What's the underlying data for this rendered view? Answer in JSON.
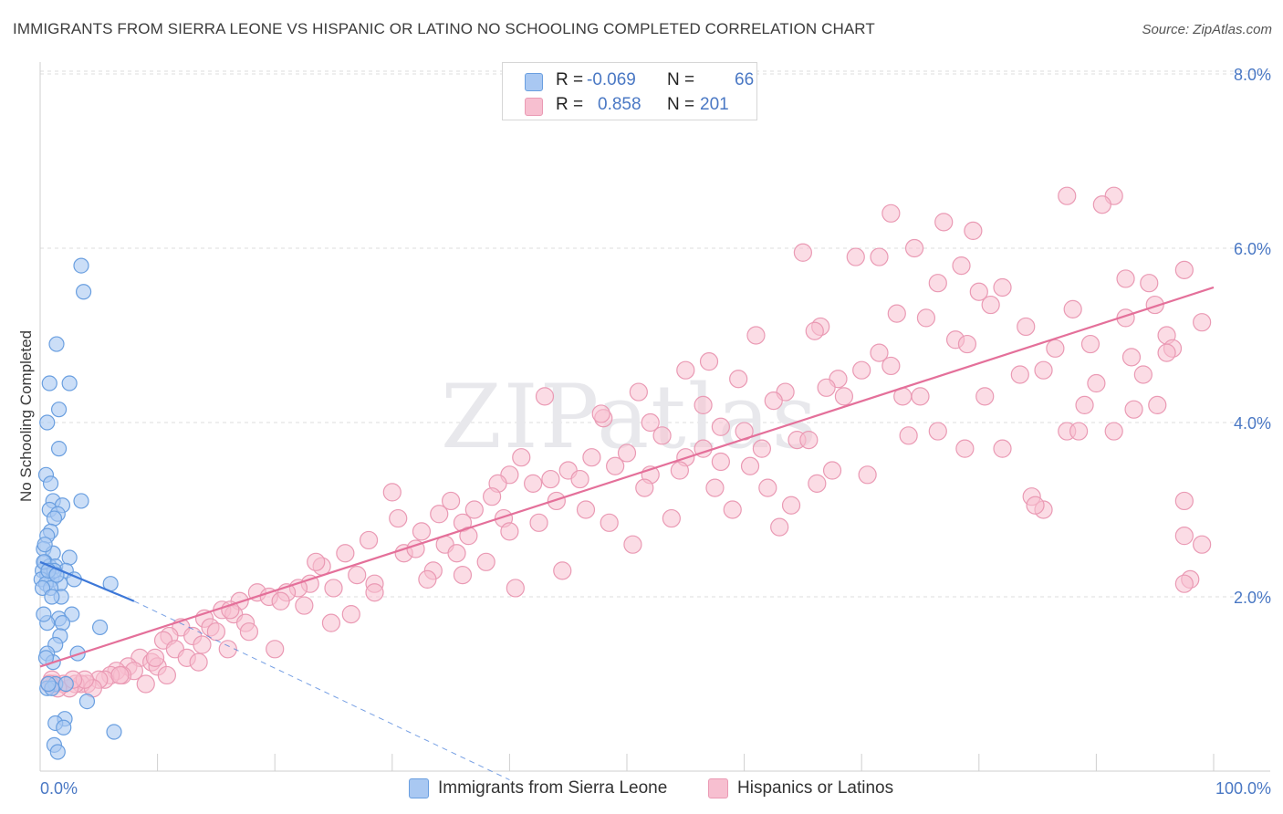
{
  "title": "IMMIGRANTS FROM SIERRA LEONE VS HISPANIC OR LATINO NO SCHOOLING COMPLETED CORRELATION CHART",
  "source": "Source: ZipAtlas.com",
  "watermark": "ZIPatlas",
  "colors": {
    "blue_fill": "#a9c8f2",
    "blue_stroke": "#6a9fe0",
    "blue_line": "#3d78d8",
    "pink_fill": "#f7bfd0",
    "pink_stroke": "#ea9ab4",
    "pink_line": "#e4709a",
    "tick_text": "#4a78c4"
  },
  "legend_top": {
    "rows": [
      {
        "r_label": "R =",
        "r_value": "-0.069",
        "n_label": "N =",
        "n_value": "66"
      },
      {
        "r_label": "R =",
        "r_value": "0.858",
        "n_label": "N =",
        "n_value": "201"
      }
    ]
  },
  "legend_bottom": {
    "series_a": "Immigrants from Sierra Leone",
    "series_b": "Hispanics or Latinos"
  },
  "chart_data": {
    "type": "scatter",
    "title": "IMMIGRANTS FROM SIERRA LEONE VS HISPANIC OR LATINO NO SCHOOLING COMPLETED CORRELATION CHART",
    "xlabel": "",
    "ylabel": "No Schooling Completed",
    "xlim": [
      0,
      100
    ],
    "ylim": [
      0,
      8
    ],
    "x_tick_labels": [
      "0.0%",
      "100.0%"
    ],
    "y_tick_values": [
      2,
      4,
      6,
      8
    ],
    "y_tick_labels": [
      "2.0%",
      "4.0%",
      "6.0%",
      "8.0%"
    ],
    "grid": true,
    "series": [
      {
        "name": "Immigrants from Sierra Leone",
        "color": "blue",
        "r": -0.069,
        "n": 66,
        "trend": {
          "x0": 0.0,
          "y0": 2.4,
          "x1": 8.0,
          "y1": 1.95,
          "dashed_to_x": 40,
          "dashed_to_y": -0.1
        },
        "points": [
          [
            3.5,
            5.8
          ],
          [
            3.7,
            5.5
          ],
          [
            1.4,
            4.9
          ],
          [
            0.8,
            4.45
          ],
          [
            2.5,
            4.45
          ],
          [
            1.6,
            4.15
          ],
          [
            0.6,
            4.0
          ],
          [
            1.6,
            3.7
          ],
          [
            0.5,
            3.4
          ],
          [
            0.9,
            3.3
          ],
          [
            3.5,
            3.1
          ],
          [
            1.1,
            3.1
          ],
          [
            1.9,
            3.05
          ],
          [
            0.8,
            3.0
          ],
          [
            1.5,
            2.95
          ],
          [
            1.2,
            2.9
          ],
          [
            0.9,
            2.75
          ],
          [
            0.6,
            2.7
          ],
          [
            0.3,
            2.55
          ],
          [
            1.1,
            2.5
          ],
          [
            2.5,
            2.45
          ],
          [
            0.4,
            2.4
          ],
          [
            0.8,
            2.35
          ],
          [
            1.3,
            2.35
          ],
          [
            0.2,
            2.3
          ],
          [
            2.2,
            2.3
          ],
          [
            0.6,
            2.25
          ],
          [
            1.0,
            2.2
          ],
          [
            0.1,
            2.2
          ],
          [
            1.7,
            2.15
          ],
          [
            0.5,
            2.15
          ],
          [
            1.2,
            2.3
          ],
          [
            0.3,
            2.4
          ],
          [
            0.9,
            2.1
          ],
          [
            6.0,
            2.15
          ],
          [
            0.2,
            2.1
          ],
          [
            0.7,
            2.3
          ],
          [
            1.4,
            2.25
          ],
          [
            2.7,
            1.8
          ],
          [
            1.6,
            1.75
          ],
          [
            0.6,
            1.7
          ],
          [
            1.9,
            1.7
          ],
          [
            5.1,
            1.65
          ],
          [
            1.7,
            1.55
          ],
          [
            1.3,
            1.45
          ],
          [
            0.6,
            1.35
          ],
          [
            3.2,
            1.35
          ],
          [
            1.1,
            1.25
          ],
          [
            1.3,
            1.0
          ],
          [
            2.2,
            1.0
          ],
          [
            0.6,
            0.95
          ],
          [
            1.0,
            0.95
          ],
          [
            4.0,
            0.8
          ],
          [
            2.1,
            0.6
          ],
          [
            1.3,
            0.55
          ],
          [
            2.0,
            0.5
          ],
          [
            6.3,
            0.45
          ],
          [
            1.2,
            0.3
          ],
          [
            1.5,
            0.22
          ],
          [
            0.5,
            1.3
          ],
          [
            1.8,
            2.0
          ],
          [
            0.4,
            2.6
          ],
          [
            2.9,
            2.2
          ],
          [
            0.7,
            1.0
          ],
          [
            1.0,
            2.0
          ],
          [
            0.3,
            1.8
          ]
        ]
      },
      {
        "name": "Hispanics or Latinos",
        "color": "pink",
        "r": 0.858,
        "n": 201,
        "trend": {
          "x0": 0.0,
          "y0": 1.2,
          "x1": 100.0,
          "y1": 5.55
        },
        "points": [
          [
            87.5,
            6.6
          ],
          [
            91.5,
            6.6
          ],
          [
            90.5,
            6.5
          ],
          [
            72.5,
            6.4
          ],
          [
            77,
            6.3
          ],
          [
            79.5,
            6.2
          ],
          [
            74.5,
            6.0
          ],
          [
            65,
            5.95
          ],
          [
            69.5,
            5.9
          ],
          [
            71.5,
            5.9
          ],
          [
            78.5,
            5.8
          ],
          [
            97.5,
            5.75
          ],
          [
            92.5,
            5.65
          ],
          [
            94.5,
            5.6
          ],
          [
            76.5,
            5.6
          ],
          [
            82,
            5.55
          ],
          [
            80,
            5.5
          ],
          [
            81,
            5.35
          ],
          [
            95,
            5.35
          ],
          [
            88,
            5.3
          ],
          [
            73,
            5.25
          ],
          [
            75.5,
            5.2
          ],
          [
            92.5,
            5.2
          ],
          [
            99,
            5.15
          ],
          [
            84,
            5.1
          ],
          [
            66.5,
            5.1
          ],
          [
            61,
            5.0
          ],
          [
            66,
            5.05
          ],
          [
            96,
            5.0
          ],
          [
            78,
            4.95
          ],
          [
            79,
            4.9
          ],
          [
            89.5,
            4.9
          ],
          [
            96.5,
            4.85
          ],
          [
            86.5,
            4.85
          ],
          [
            96,
            4.8
          ],
          [
            71.5,
            4.8
          ],
          [
            93,
            4.75
          ],
          [
            57,
            4.7
          ],
          [
            55,
            4.6
          ],
          [
            72.5,
            4.65
          ],
          [
            85.5,
            4.6
          ],
          [
            70,
            4.6
          ],
          [
            83.5,
            4.55
          ],
          [
            68,
            4.5
          ],
          [
            59.5,
            4.5
          ],
          [
            67,
            4.4
          ],
          [
            94,
            4.55
          ],
          [
            90,
            4.45
          ],
          [
            63.5,
            4.35
          ],
          [
            51,
            4.35
          ],
          [
            43,
            4.3
          ],
          [
            73.5,
            4.3
          ],
          [
            75,
            4.3
          ],
          [
            62.5,
            4.25
          ],
          [
            56.5,
            4.2
          ],
          [
            80.5,
            4.3
          ],
          [
            89,
            4.2
          ],
          [
            68.5,
            4.3
          ],
          [
            48,
            4.05
          ],
          [
            52,
            4.0
          ],
          [
            58,
            3.95
          ],
          [
            60,
            3.9
          ],
          [
            76.5,
            3.9
          ],
          [
            87.5,
            3.9
          ],
          [
            91.5,
            3.9
          ],
          [
            64.5,
            3.8
          ],
          [
            53,
            3.85
          ],
          [
            56.5,
            3.7
          ],
          [
            61.5,
            3.7
          ],
          [
            65.5,
            3.8
          ],
          [
            82,
            3.7
          ],
          [
            50,
            3.65
          ],
          [
            55,
            3.6
          ],
          [
            47,
            3.6
          ],
          [
            41,
            3.6
          ],
          [
            58,
            3.55
          ],
          [
            49,
            3.5
          ],
          [
            45,
            3.45
          ],
          [
            54.5,
            3.45
          ],
          [
            52,
            3.4
          ],
          [
            40,
            3.4
          ],
          [
            43.5,
            3.35
          ],
          [
            46,
            3.35
          ],
          [
            39,
            3.3
          ],
          [
            42,
            3.3
          ],
          [
            67.5,
            3.45
          ],
          [
            30,
            3.2
          ],
          [
            51.5,
            3.25
          ],
          [
            57.5,
            3.25
          ],
          [
            62,
            3.25
          ],
          [
            38.5,
            3.15
          ],
          [
            84.5,
            3.15
          ],
          [
            35,
            3.1
          ],
          [
            44,
            3.1
          ],
          [
            97.5,
            3.1
          ],
          [
            37,
            3.0
          ],
          [
            46.5,
            3.0
          ],
          [
            64,
            3.05
          ],
          [
            34,
            2.95
          ],
          [
            39.5,
            2.9
          ],
          [
            85.5,
            3.0
          ],
          [
            30.5,
            2.9
          ],
          [
            36,
            2.85
          ],
          [
            42.5,
            2.85
          ],
          [
            32.5,
            2.75
          ],
          [
            48.5,
            2.85
          ],
          [
            63,
            2.8
          ],
          [
            40,
            2.75
          ],
          [
            36.5,
            2.7
          ],
          [
            97.5,
            2.7
          ],
          [
            28,
            2.65
          ],
          [
            34.5,
            2.6
          ],
          [
            99,
            2.6
          ],
          [
            31,
            2.5
          ],
          [
            32,
            2.55
          ],
          [
            35.5,
            2.5
          ],
          [
            26,
            2.5
          ],
          [
            38,
            2.4
          ],
          [
            24,
            2.35
          ],
          [
            33.5,
            2.3
          ],
          [
            36,
            2.25
          ],
          [
            27,
            2.25
          ],
          [
            28.5,
            2.15
          ],
          [
            23,
            2.15
          ],
          [
            25,
            2.1
          ],
          [
            22,
            2.1
          ],
          [
            98,
            2.2
          ],
          [
            97.5,
            2.15
          ],
          [
            21,
            2.05
          ],
          [
            18.5,
            2.05
          ],
          [
            19.5,
            2.0
          ],
          [
            20.5,
            1.95
          ],
          [
            17,
            1.95
          ],
          [
            22.5,
            1.9
          ],
          [
            26.5,
            1.8
          ],
          [
            15.5,
            1.85
          ],
          [
            16.5,
            1.8
          ],
          [
            14,
            1.75
          ],
          [
            17.5,
            1.7
          ],
          [
            14.5,
            1.65
          ],
          [
            12,
            1.65
          ],
          [
            15,
            1.6
          ],
          [
            13,
            1.55
          ],
          [
            11,
            1.55
          ],
          [
            10.5,
            1.5
          ],
          [
            16,
            1.4
          ],
          [
            11.5,
            1.4
          ],
          [
            12.5,
            1.3
          ],
          [
            13.5,
            1.25
          ],
          [
            8.5,
            1.3
          ],
          [
            9.5,
            1.25
          ],
          [
            10,
            1.2
          ],
          [
            7.5,
            1.2
          ],
          [
            8,
            1.15
          ],
          [
            6.5,
            1.15
          ],
          [
            7,
            1.1
          ],
          [
            6,
            1.1
          ],
          [
            5.5,
            1.05
          ],
          [
            5,
            1.05
          ],
          [
            4,
            1.0
          ],
          [
            3.5,
            1.0
          ],
          [
            3,
            1.0
          ],
          [
            2.5,
            0.95
          ],
          [
            2,
            1.0
          ],
          [
            1.5,
            0.95
          ],
          [
            1.2,
            1.0
          ],
          [
            1.0,
            1.05
          ],
          [
            0.8,
            1.0
          ],
          [
            4.5,
            0.95
          ],
          [
            3.8,
            1.05
          ],
          [
            2.8,
            1.05
          ],
          [
            6.8,
            1.1
          ],
          [
            9,
            1.0
          ],
          [
            10.8,
            1.1
          ],
          [
            20,
            1.4
          ],
          [
            17.8,
            1.6
          ],
          [
            23.5,
            2.4
          ],
          [
            28.5,
            2.05
          ],
          [
            33,
            2.2
          ],
          [
            44.5,
            2.3
          ],
          [
            50.5,
            2.6
          ],
          [
            53.8,
            2.9
          ],
          [
            59,
            3.0
          ],
          [
            60.5,
            3.5
          ],
          [
            66.2,
            3.3
          ],
          [
            70.5,
            3.4
          ],
          [
            74,
            3.85
          ],
          [
            78.8,
            3.7
          ],
          [
            84.8,
            3.05
          ],
          [
            88.5,
            3.9
          ],
          [
            93.2,
            4.15
          ],
          [
            95.2,
            4.2
          ],
          [
            47.8,
            4.1
          ],
          [
            40.5,
            2.1
          ],
          [
            13.8,
            1.45
          ],
          [
            9.8,
            1.3
          ],
          [
            16.2,
            1.85
          ],
          [
            24.8,
            1.7
          ]
        ]
      }
    ]
  }
}
